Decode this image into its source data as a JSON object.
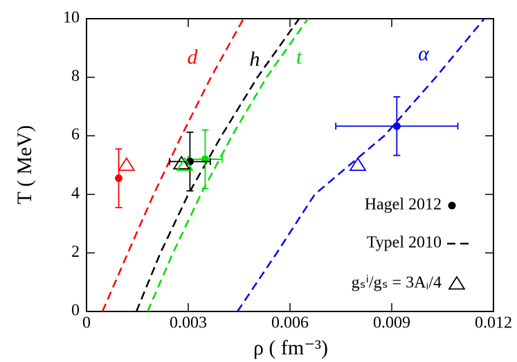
{
  "chart_data": {
    "type": "line",
    "xlabel": "ρ ( fm⁻³)",
    "ylabel": "T ( MeV)",
    "xlim": [
      0,
      0.012
    ],
    "ylim": [
      0,
      10
    ],
    "xticks": [
      0,
      0.003,
      0.006,
      0.009,
      0.012
    ],
    "yticks": [
      0,
      2,
      4,
      6,
      8,
      10
    ],
    "curves": [
      {
        "name": "d",
        "color": "#ff0000",
        "x": [
          0.00047,
          0.00122,
          0.00198,
          0.0028,
          0.00367,
          0.00463
        ],
        "y": [
          0,
          2,
          4,
          6,
          8,
          10
        ]
      },
      {
        "name": "h",
        "color": "#000000",
        "x": [
          0.00147,
          0.00218,
          0.003,
          0.00398,
          0.00504,
          0.00627
        ],
        "y": [
          0,
          2,
          4,
          6,
          8,
          10
        ]
      },
      {
        "name": "t",
        "color": "#00dd00",
        "x": [
          0.0018,
          0.00255,
          0.00337,
          0.00429,
          0.00531,
          0.00653
        ],
        "y": [
          0,
          2,
          4,
          6,
          8,
          10
        ]
      },
      {
        "name": "α",
        "color": "#0000ee",
        "x": [
          0.00445,
          0.00561,
          0.00673,
          0.00878,
          0.0103,
          0.01173
        ],
        "y": [
          0,
          2,
          4,
          6,
          8,
          10
        ]
      }
    ],
    "points": [
      {
        "color": "#ff0000",
        "x": 0.00095,
        "y": 4.55,
        "xerr": 0,
        "yerr": 1
      },
      {
        "color": "#00dd00",
        "x": 0.0035,
        "y": 5.2,
        "xerr": 0.0005,
        "yerr": 1
      },
      {
        "color": "#000000",
        "x": 0.00305,
        "y": 5.12,
        "xerr": 0.0006,
        "yerr": 1
      },
      {
        "color": "#0000ee",
        "x": 0.00915,
        "y": 6.33,
        "xerr": 0.0018,
        "yerr": 1
      }
    ],
    "triangles": [
      {
        "color": "#ff0000",
        "x": 0.00118,
        "y": 5.0
      },
      {
        "color": "#000000",
        "x": 0.0028,
        "y": 5.05
      },
      {
        "color": "#00dd00",
        "x": 0.0029,
        "y": 5.0
      },
      {
        "color": "#0000ee",
        "x": 0.008,
        "y": 5.0
      }
    ],
    "legend": [
      "Hagel 2012",
      "Typel 2010",
      "gₛⁱ/gₛ = 3Aᵢ/4"
    ]
  }
}
